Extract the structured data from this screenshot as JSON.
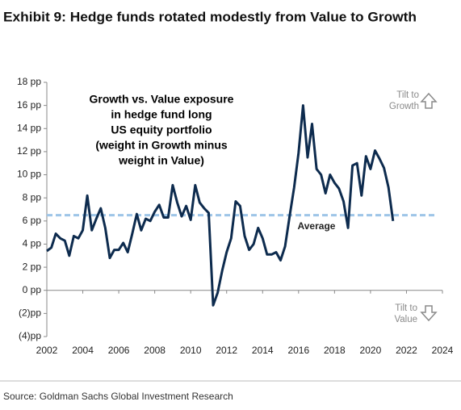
{
  "chart_data": {
    "type": "line",
    "title": "Exhibit 9: Hedge funds rotated modestly from Value to Growth",
    "source": "Source: Goldman Sachs Global Investment Research",
    "annotation_lines": [
      "Growth vs. Value exposure",
      "in hedge fund long",
      "US equity portfolio",
      "(weight in Growth minus",
      "weight in Value)"
    ],
    "tilt_up": [
      "Tilt to",
      "Growth"
    ],
    "tilt_down": [
      "Tilt to",
      "Value"
    ],
    "average": {
      "value": 6.5,
      "label": "Average",
      "color": "#9ec5e8"
    },
    "x": [
      2002.0,
      2002.25,
      2002.5,
      2002.75,
      2003.0,
      2003.25,
      2003.5,
      2003.75,
      2004.0,
      2004.25,
      2004.5,
      2004.75,
      2005.0,
      2005.25,
      2005.5,
      2005.75,
      2006.0,
      2006.25,
      2006.5,
      2006.75,
      2007.0,
      2007.25,
      2007.5,
      2007.75,
      2008.0,
      2008.25,
      2008.5,
      2008.75,
      2009.0,
      2009.25,
      2009.5,
      2009.75,
      2010.0,
      2010.25,
      2010.5,
      2010.75,
      2011.0,
      2011.25,
      2011.5,
      2011.75,
      2012.0,
      2012.25,
      2012.5,
      2012.75,
      2013.0,
      2013.25,
      2013.5,
      2013.75,
      2014.0,
      2014.25,
      2014.5,
      2014.75,
      2015.0,
      2015.25,
      2015.5,
      2015.75,
      2016.0,
      2016.25,
      2016.5,
      2016.75,
      2017.0,
      2017.25,
      2017.5,
      2017.75,
      2018.0,
      2018.25,
      2018.5,
      2018.75,
      2019.0,
      2019.25,
      2019.5,
      2019.75,
      2020.0,
      2020.25,
      2020.5,
      2020.75,
      2021.0,
      2021.25
    ],
    "series": [
      {
        "name": "Growth vs. Value exposure",
        "color": "#0d2b4e",
        "values": [
          3.4,
          3.7,
          4.9,
          4.5,
          4.3,
          3.0,
          4.7,
          4.5,
          5.2,
          8.2,
          5.2,
          6.2,
          7.1,
          5.4,
          2.8,
          3.5,
          3.5,
          4.1,
          3.3,
          4.9,
          6.6,
          5.2,
          6.2,
          6.0,
          6.8,
          7.4,
          6.3,
          6.3,
          9.1,
          7.6,
          6.4,
          7.3,
          6.1,
          9.1,
          7.6,
          7.1,
          6.7,
          -1.3,
          -0.2,
          1.7,
          3.3,
          4.5,
          7.7,
          7.3,
          4.7,
          3.5,
          4.0,
          5.4,
          4.5,
          3.1,
          3.1,
          3.3,
          2.6,
          3.8,
          6.4,
          8.9,
          11.9,
          16.0,
          11.5,
          14.4,
          10.5,
          10.0,
          8.4,
          10.0,
          9.3,
          8.8,
          7.7,
          5.4,
          10.8,
          11.0,
          8.2,
          11.6,
          10.5,
          12.1,
          11.4,
          10.6,
          8.9,
          6.0
        ]
      }
    ],
    "xlim": [
      2002,
      2024
    ],
    "xticks": [
      2002,
      2004,
      2006,
      2008,
      2010,
      2012,
      2014,
      2016,
      2018,
      2020,
      2022,
      2024
    ],
    "ylim": [
      -4,
      18
    ],
    "yticks": [
      {
        "value": 18,
        "label": "18 pp"
      },
      {
        "value": 16,
        "label": "16 pp"
      },
      {
        "value": 14,
        "label": "14 pp"
      },
      {
        "value": 12,
        "label": "12 pp"
      },
      {
        "value": 10,
        "label": "10 pp"
      },
      {
        "value": 8,
        "label": "8 pp"
      },
      {
        "value": 6,
        "label": "6 pp"
      },
      {
        "value": 4,
        "label": "4 pp"
      },
      {
        "value": 2,
        "label": "2 pp"
      },
      {
        "value": 0,
        "label": "0 pp"
      },
      {
        "value": -2,
        "label": "(2)pp"
      },
      {
        "value": -4,
        "label": "(4)pp"
      }
    ],
    "grid": false
  }
}
